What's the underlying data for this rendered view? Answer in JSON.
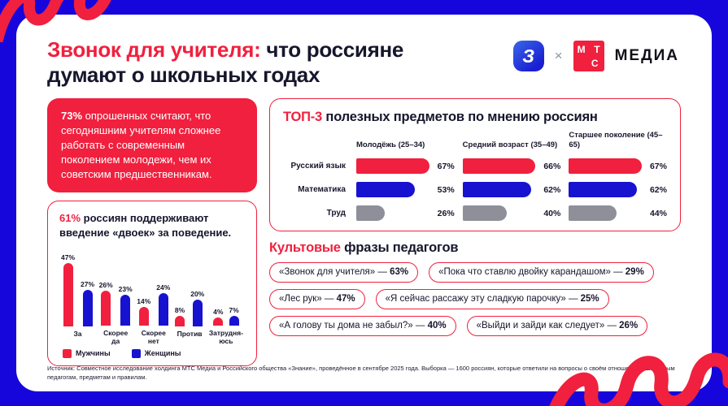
{
  "colors": {
    "red": "#F0203E",
    "blue": "#1712D0",
    "gray": "#8F8F9A",
    "background_blue": "#1606DB",
    "dark_text": "#16162C"
  },
  "header": {
    "title_red": "Звонок для учителя:",
    "title_dark": " что россияне думают о школьных годах",
    "logo_znanie_letter": "З",
    "logo_separator": "×",
    "logo_mts": {
      "m": "М",
      "t": "Т",
      "s": "С"
    },
    "logo_media": "МЕДИА"
  },
  "fact_box": {
    "highlight": "73%",
    "text": " опрошенных считают, что сегодняшним учителям сложнее работать с современным поколением молодежи, чем их советским предшественникам."
  },
  "poll_box": {
    "highlight": "61%",
    "text": " россиян поддерживают введение «двоек» за поведение."
  },
  "top3_section": {
    "title_red": "ТОП-3",
    "title_dark": " полезных предметов по мнению россиян"
  },
  "phrases_section": {
    "title_red": "Культовые",
    "title_dark": " фразы педагогов",
    "items": [
      {
        "quote": "«Звонок для учителя»",
        "value": "63%"
      },
      {
        "quote": "«Пока что ставлю двойку карандашом»",
        "value": "29%"
      },
      {
        "quote": "«Лес рук»",
        "value": "47%"
      },
      {
        "quote": "«Я сейчас рассажу эту сладкую парочку»",
        "value": "25%"
      },
      {
        "quote": "«А голову ты дома не забыл?»",
        "value": "40%"
      },
      {
        "quote": "«Выйди и зайди как следует»",
        "value": "26%"
      }
    ]
  },
  "footer": {
    "source": "Источник: Совместное исследование холдинга МТС Медиа и Российского общества «Знание», проведённое в сентябре 2025 года. Выборка — 1600 россиян, которые ответили на вопросы о своём отношении к школьным педагогам, предметам и правилам."
  },
  "chart_data": [
    {
      "id": "discipline-poll",
      "type": "bar",
      "title": "61% россиян поддерживают введение «двоек» за поведение.",
      "categories": [
        "За",
        "Скорее\nда",
        "Скорее\nнет",
        "Против",
        "Затрудня-\nюсь"
      ],
      "series": [
        {
          "name": "Мужчины",
          "color": "#F0203E",
          "values": [
            47,
            26,
            14,
            8,
            4
          ]
        },
        {
          "name": "Женщины",
          "color": "#1712D0",
          "values": [
            27,
            23,
            24,
            20,
            7
          ]
        }
      ],
      "unit": "%",
      "ylim": [
        0,
        50
      ],
      "grid": false,
      "legend_position": "bottom"
    },
    {
      "id": "top3-subjects",
      "type": "bar",
      "orientation": "horizontal",
      "title": "ТОП-3 полезных предметов по мнению россиян",
      "categories": [
        "Русский язык",
        "Математика",
        "Труд"
      ],
      "category_colors": [
        "#F0203E",
        "#1712D0",
        "#8F8F9A"
      ],
      "series": [
        {
          "name": "Молодёжь (25–34)",
          "values": [
            67,
            53,
            26
          ]
        },
        {
          "name": "Средний возраст (35–49)",
          "values": [
            66,
            62,
            40
          ]
        },
        {
          "name": "Старшее поколение (45–65)",
          "values": [
            67,
            62,
            44
          ]
        }
      ],
      "unit": "%",
      "xlim": [
        0,
        70
      ],
      "grid": false,
      "legend_position": "top"
    }
  ]
}
